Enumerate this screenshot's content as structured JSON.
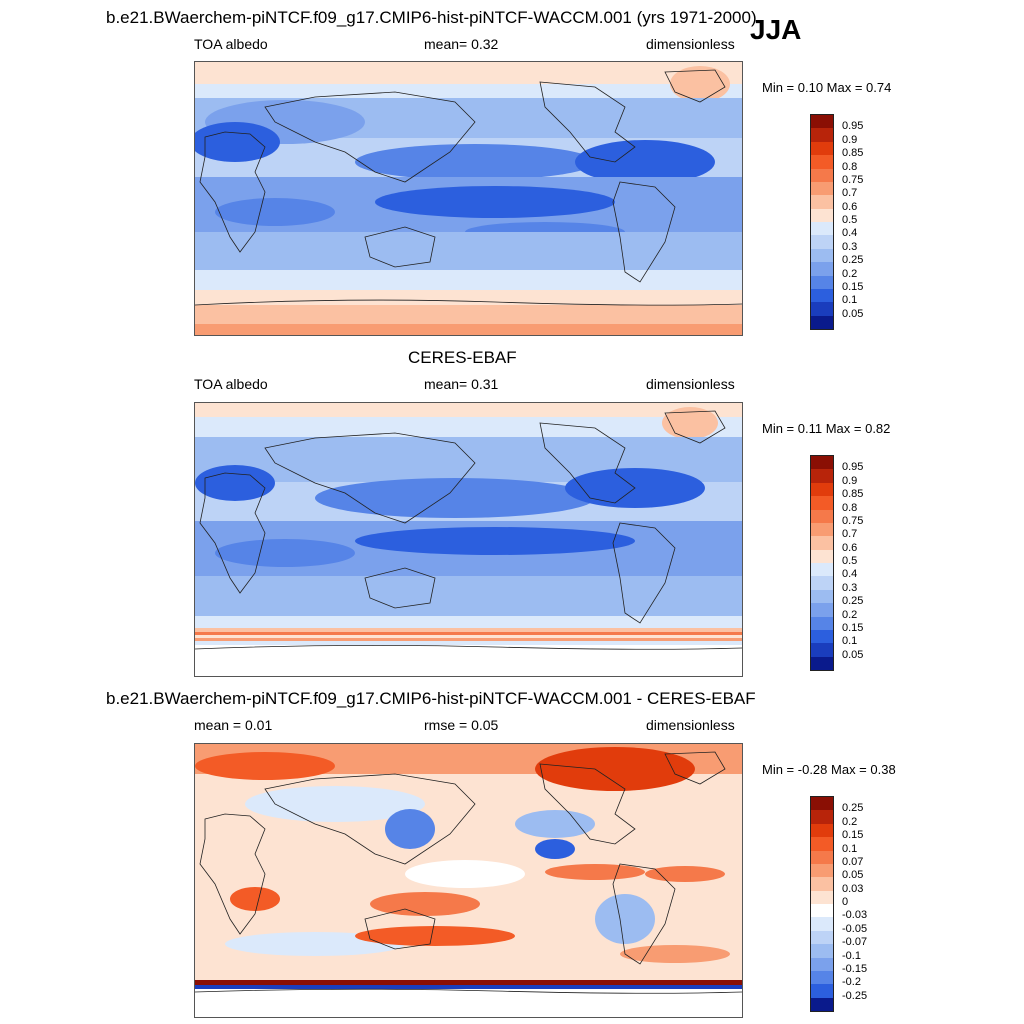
{
  "season": "JJA",
  "panels": [
    {
      "title": "b.e21.BWaerchem-piNTCF.f09_g17.CMIP6-hist-piNTCF-WACCM.001 (yrs 1971-2000)",
      "left_label": "TOA albedo",
      "center_label": "mean=   0.32",
      "right_label": "dimensionless",
      "minmax": "Min =   0.10 Max =   0.74",
      "kind": "abs"
    },
    {
      "title": "CERES-EBAF",
      "left_label": "TOA albedo",
      "center_label": "mean=   0.31",
      "right_label": "dimensionless",
      "minmax": "Min =   0.11 Max =   0.82",
      "kind": "abs"
    },
    {
      "title": "b.e21.BWaerchem-piNTCF.f09_g17.CMIP6-hist-piNTCF-WACCM.001 - CERES-EBAF",
      "left_label": "mean =   0.01",
      "center_label": "rmse =   0.05",
      "right_label": "dimensionless",
      "minmax": "Min =  -0.28 Max =   0.38",
      "kind": "diff"
    }
  ],
  "colorbars": {
    "abs": {
      "labels": [
        "0.95",
        "0.9",
        "0.85",
        "0.8",
        "0.75",
        "0.7",
        "0.6",
        "0.5",
        "0.4",
        "0.3",
        "0.25",
        "0.2",
        "0.15",
        "0.1",
        "0.05"
      ],
      "colors": [
        "#8a0f04",
        "#b8240a",
        "#e13c0c",
        "#f35b26",
        "#f5794a",
        "#f89c72",
        "#fbc1a2",
        "#fde3d2",
        "#dbe9fb",
        "#bdd3f6",
        "#9cbcf1",
        "#7ba1ec",
        "#5684e7",
        "#2c5fde",
        "#1a3dbd",
        "#0a1a8c"
      ]
    },
    "diff": {
      "labels": [
        "0.25",
        "0.2",
        "0.15",
        "0.1",
        "0.07",
        "0.05",
        "0.03",
        "0",
        "-0.03",
        "-0.05",
        "-0.07",
        "-0.1",
        "-0.15",
        "-0.2",
        "-0.25"
      ],
      "colors": [
        "#8a0f04",
        "#b8240a",
        "#e13c0c",
        "#f35b26",
        "#f5794a",
        "#f89c72",
        "#fbc1a2",
        "#fde3d2",
        "#ffffff",
        "#dbe9fb",
        "#bdd3f6",
        "#9cbcf1",
        "#7ba1ec",
        "#5684e7",
        "#2c5fde",
        "#0a1a8c"
      ]
    }
  }
}
